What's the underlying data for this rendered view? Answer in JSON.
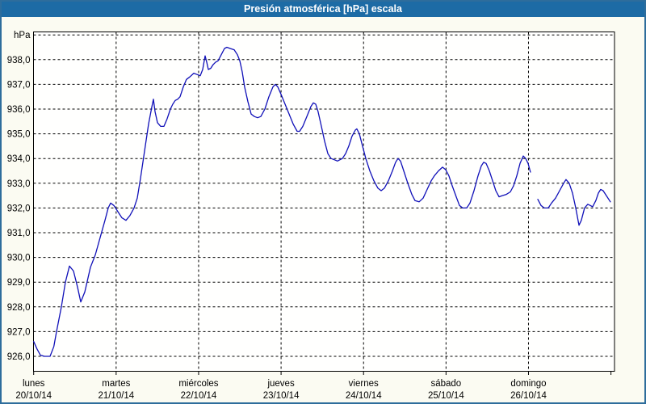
{
  "window": {
    "title": "Presión atmosférica [hPa] escala"
  },
  "colors": {
    "titlebar_bg": "#1d6ba5",
    "titlebar_text": "#ffffff",
    "frame_border": "#2e6d9c",
    "panel_bg": "#fbfbf2",
    "plot_bg": "#fffffe",
    "grid_line": "#000000",
    "series_line": "#1010b8",
    "axis_text": "#000000"
  },
  "chart_data": {
    "type": "line",
    "title": "Presión atmosférica [hPa] escala",
    "y_unit_label": "hPa",
    "grid": "dashed",
    "legend": "none",
    "ylim": [
      925.4,
      939.1
    ],
    "x_range_days": [
      0,
      7
    ],
    "y_ticks": [
      {
        "v": 938,
        "label": "938,0"
      },
      {
        "v": 937,
        "label": "937,0"
      },
      {
        "v": 936,
        "label": "936,0"
      },
      {
        "v": 935,
        "label": "935,0"
      },
      {
        "v": 934,
        "label": "934,0"
      },
      {
        "v": 933,
        "label": "933,0"
      },
      {
        "v": 932,
        "label": "932,0"
      },
      {
        "v": 931,
        "label": "931,0"
      },
      {
        "v": 930,
        "label": "930,0"
      },
      {
        "v": 929,
        "label": "929,0"
      },
      {
        "v": 928,
        "label": "928,0"
      },
      {
        "v": 927,
        "label": "927,0"
      },
      {
        "v": 926,
        "label": "926,0"
      }
    ],
    "x_days": [
      {
        "name": "lunes",
        "date": "20/10/14"
      },
      {
        "name": "martes",
        "date": "21/10/14"
      },
      {
        "name": "miércoles",
        "date": "22/10/14"
      },
      {
        "name": "jueves",
        "date": "23/10/14"
      },
      {
        "name": "viernes",
        "date": "24/10/14"
      },
      {
        "name": "sábado",
        "date": "25/10/14"
      },
      {
        "name": "domingo",
        "date": "26/10/14"
      }
    ],
    "series": [
      {
        "name": "Presión atmosférica",
        "unit": "hPa",
        "color": "#1010b8",
        "segments": [
          [
            [
              0.0,
              926.6
            ],
            [
              0.04,
              926.3
            ],
            [
              0.081,
              926.05
            ],
            [
              0.13,
              926.0
            ],
            [
              0.199,
              926.0
            ],
            [
              0.245,
              926.4
            ],
            [
              0.277,
              927.0
            ],
            [
              0.336,
              928.0
            ],
            [
              0.385,
              929.0
            ],
            [
              0.434,
              929.65
            ],
            [
              0.483,
              929.45
            ],
            [
              0.532,
              928.8
            ],
            [
              0.571,
              928.2
            ],
            [
              0.62,
              928.6
            ],
            [
              0.688,
              929.6
            ],
            [
              0.747,
              930.1
            ],
            [
              0.806,
              930.8
            ],
            [
              0.865,
              931.5
            ],
            [
              0.904,
              932.0
            ],
            [
              0.933,
              932.2
            ],
            [
              0.972,
              932.1
            ],
            [
              1.021,
              931.85
            ],
            [
              1.07,
              931.6
            ],
            [
              1.119,
              931.5
            ],
            [
              1.168,
              931.7
            ],
            [
              1.217,
              932.0
            ],
            [
              1.256,
              932.4
            ],
            [
              1.295,
              933.2
            ],
            [
              1.344,
              934.3
            ],
            [
              1.393,
              935.4
            ],
            [
              1.433,
              936.1
            ],
            [
              1.452,
              936.4
            ],
            [
              1.472,
              935.9
            ],
            [
              1.501,
              935.45
            ],
            [
              1.54,
              935.3
            ],
            [
              1.579,
              935.3
            ],
            [
              1.618,
              935.6
            ],
            [
              1.658,
              936.0
            ],
            [
              1.687,
              936.2
            ],
            [
              1.716,
              936.35
            ],
            [
              1.746,
              936.4
            ],
            [
              1.775,
              936.5
            ],
            [
              1.814,
              936.9
            ],
            [
              1.853,
              937.2
            ],
            [
              1.893,
              937.3
            ],
            [
              1.942,
              937.45
            ],
            [
              1.981,
              937.4
            ],
            [
              2.02,
              937.35
            ],
            [
              2.049,
              937.6
            ],
            [
              2.079,
              938.15
            ],
            [
              2.098,
              937.9
            ],
            [
              2.118,
              937.6
            ],
            [
              2.147,
              937.65
            ],
            [
              2.177,
              937.8
            ],
            [
              2.206,
              937.9
            ],
            [
              2.235,
              937.95
            ],
            [
              2.275,
              938.2
            ],
            [
              2.314,
              938.45
            ],
            [
              2.343,
              938.5
            ],
            [
              2.382,
              938.45
            ],
            [
              2.431,
              938.4
            ],
            [
              2.47,
              938.2
            ],
            [
              2.5,
              937.95
            ],
            [
              2.529,
              937.5
            ],
            [
              2.558,
              936.9
            ],
            [
              2.598,
              936.3
            ],
            [
              2.637,
              935.8
            ],
            [
              2.676,
              935.7
            ],
            [
              2.715,
              935.65
            ],
            [
              2.754,
              935.7
            ],
            [
              2.803,
              936.0
            ],
            [
              2.852,
              936.5
            ],
            [
              2.901,
              936.9
            ],
            [
              2.931,
              937.0
            ],
            [
              2.96,
              936.9
            ],
            [
              2.999,
              936.6
            ],
            [
              3.048,
              936.2
            ],
            [
              3.097,
              935.8
            ],
            [
              3.146,
              935.4
            ],
            [
              3.195,
              935.1
            ],
            [
              3.224,
              935.1
            ],
            [
              3.263,
              935.3
            ],
            [
              3.312,
              935.7
            ],
            [
              3.361,
              936.1
            ],
            [
              3.391,
              936.25
            ],
            [
              3.42,
              936.2
            ],
            [
              3.449,
              935.9
            ],
            [
              3.489,
              935.3
            ],
            [
              3.528,
              934.7
            ],
            [
              3.567,
              934.2
            ],
            [
              3.606,
              934.0
            ],
            [
              3.645,
              933.95
            ],
            [
              3.684,
              933.9
            ],
            [
              3.714,
              933.95
            ],
            [
              3.743,
              934.0
            ],
            [
              3.782,
              934.2
            ],
            [
              3.821,
              934.5
            ],
            [
              3.86,
              934.9
            ],
            [
              3.9,
              935.15
            ],
            [
              3.919,
              935.2
            ],
            [
              3.949,
              935.0
            ],
            [
              3.988,
              934.5
            ],
            [
              4.027,
              934.0
            ],
            [
              4.076,
              933.5
            ],
            [
              4.125,
              933.1
            ],
            [
              4.174,
              932.8
            ],
            [
              4.213,
              932.7
            ],
            [
              4.252,
              932.8
            ],
            [
              4.301,
              933.1
            ],
            [
              4.35,
              933.5
            ],
            [
              4.389,
              933.85
            ],
            [
              4.418,
              934.0
            ],
            [
              4.448,
              933.9
            ],
            [
              4.487,
              933.5
            ],
            [
              4.536,
              933.0
            ],
            [
              4.585,
              932.55
            ],
            [
              4.624,
              932.3
            ],
            [
              4.673,
              932.25
            ],
            [
              4.722,
              932.4
            ],
            [
              4.771,
              932.75
            ],
            [
              4.82,
              933.1
            ],
            [
              4.859,
              933.3
            ],
            [
              4.908,
              933.5
            ],
            [
              4.957,
              933.65
            ],
            [
              4.996,
              933.55
            ],
            [
              5.035,
              933.3
            ],
            [
              5.075,
              932.9
            ],
            [
              5.124,
              932.45
            ],
            [
              5.163,
              932.1
            ],
            [
              5.202,
              932.0
            ],
            [
              5.251,
              932.0
            ],
            [
              5.29,
              932.2
            ],
            [
              5.339,
              932.7
            ],
            [
              5.388,
              933.3
            ],
            [
              5.427,
              933.7
            ],
            [
              5.457,
              933.85
            ],
            [
              5.486,
              933.8
            ],
            [
              5.525,
              933.5
            ],
            [
              5.564,
              933.1
            ],
            [
              5.604,
              932.7
            ],
            [
              5.643,
              932.45
            ],
            [
              5.682,
              932.5
            ],
            [
              5.731,
              932.55
            ],
            [
              5.78,
              932.65
            ],
            [
              5.819,
              932.9
            ],
            [
              5.858,
              933.3
            ],
            [
              5.897,
              933.8
            ],
            [
              5.937,
              934.1
            ],
            [
              5.966,
              934.0
            ],
            [
              5.995,
              933.8
            ],
            [
              6.024,
              933.45
            ]
          ],
          [
            [
              6.113,
              932.35
            ],
            [
              6.152,
              932.1
            ],
            [
              6.191,
              932.0
            ],
            [
              6.24,
              932.0
            ],
            [
              6.279,
              932.2
            ],
            [
              6.328,
              932.4
            ],
            [
              6.377,
              932.7
            ],
            [
              6.426,
              933.0
            ],
            [
              6.455,
              933.15
            ],
            [
              6.494,
              933.0
            ],
            [
              6.534,
              932.6
            ],
            [
              6.573,
              932.0
            ],
            [
              6.612,
              931.3
            ],
            [
              6.641,
              931.5
            ],
            [
              6.68,
              932.0
            ],
            [
              6.719,
              932.15
            ],
            [
              6.749,
              932.1
            ],
            [
              6.778,
              932.05
            ],
            [
              6.817,
              932.3
            ],
            [
              6.847,
              932.6
            ],
            [
              6.876,
              932.75
            ],
            [
              6.905,
              932.7
            ],
            [
              6.944,
              932.5
            ],
            [
              6.993,
              932.25
            ]
          ]
        ]
      }
    ]
  }
}
